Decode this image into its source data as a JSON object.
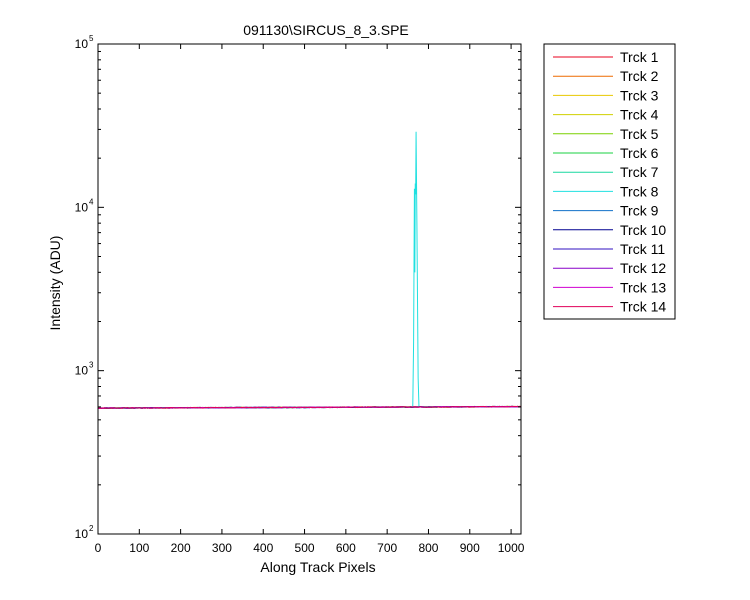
{
  "chart_data": {
    "type": "line",
    "title": "091130\\SIRCUS_8_3.SPE",
    "xlabel": "Along Track Pixels",
    "ylabel": "Intensity (ADU)",
    "xlim": [
      0,
      1024
    ],
    "ylim": [
      100,
      100000
    ],
    "yscale": "log",
    "grid": false,
    "legend_position": "outside-right-top",
    "x_ticks": [
      0,
      100,
      200,
      300,
      400,
      500,
      600,
      700,
      800,
      900,
      1000
    ],
    "y_ticks": [
      {
        "value": 100,
        "base": "10",
        "exp": "2"
      },
      {
        "value": 1000,
        "base": "10",
        "exp": "3"
      },
      {
        "value": 10000,
        "base": "10",
        "exp": "4"
      },
      {
        "value": 100000,
        "base": "10",
        "exp": "5"
      }
    ],
    "series": [
      {
        "name": "Trck 1",
        "color": "#e8001c",
        "baseline": 590,
        "slope": 0.012
      },
      {
        "name": "Trck 2",
        "color": "#ee6a00",
        "baseline": 590,
        "slope": 0.012
      },
      {
        "name": "Trck 3",
        "color": "#e8c800",
        "baseline": 590,
        "slope": 0.012
      },
      {
        "name": "Trck 4",
        "color": "#d0d000",
        "baseline": 590,
        "slope": 0.012
      },
      {
        "name": "Trck 5",
        "color": "#7ad000",
        "baseline": 590,
        "slope": 0.012
      },
      {
        "name": "Trck 6",
        "color": "#18d040",
        "baseline": 590,
        "slope": 0.012
      },
      {
        "name": "Trck 7",
        "color": "#18d8a0",
        "baseline": 590,
        "slope": 0.012
      },
      {
        "name": "Trck 8",
        "color": "#20e0e0",
        "baseline": 590,
        "slope": 0.012,
        "peak": [
          {
            "x": 762,
            "y": 600
          },
          {
            "x": 764,
            "y": 1500
          },
          {
            "x": 766,
            "y": 13000
          },
          {
            "x": 767,
            "y": 4000
          },
          {
            "x": 768,
            "y": 14000
          },
          {
            "x": 769,
            "y": 12000
          },
          {
            "x": 770,
            "y": 29000
          },
          {
            "x": 771,
            "y": 15000
          },
          {
            "x": 772,
            "y": 8000
          },
          {
            "x": 773,
            "y": 3800
          },
          {
            "x": 775,
            "y": 900
          },
          {
            "x": 777,
            "y": 600
          }
        ]
      },
      {
        "name": "Trck 9",
        "color": "#1070c8",
        "baseline": 590,
        "slope": 0.012
      },
      {
        "name": "Trck 10",
        "color": "#000090",
        "baseline": 590,
        "slope": 0.012
      },
      {
        "name": "Trck 11",
        "color": "#3010c0",
        "baseline": 590,
        "slope": 0.012
      },
      {
        "name": "Trck 12",
        "color": "#8800c8",
        "baseline": 590,
        "slope": 0.012
      },
      {
        "name": "Trck 13",
        "color": "#d000d0",
        "baseline": 590,
        "slope": 0.012
      },
      {
        "name": "Trck 14",
        "color": "#e0005a",
        "baseline": 590,
        "slope": 0.012
      }
    ]
  }
}
